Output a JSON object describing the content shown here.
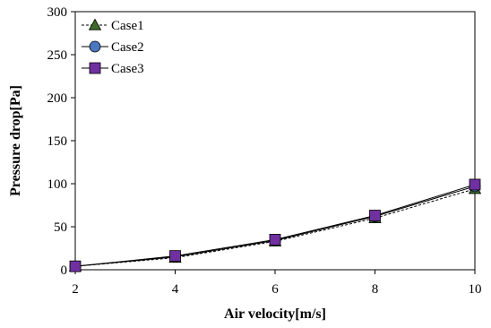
{
  "chart_data": {
    "type": "line",
    "xlabel": "Air velocity[m/s]",
    "ylabel": "Pressure drop[Pa]",
    "xlim": [
      2,
      10
    ],
    "ylim": [
      0,
      300
    ],
    "xticks": [
      "2",
      "4",
      "6",
      "8",
      "10"
    ],
    "yticks": [
      "0",
      "50",
      "100",
      "150",
      "200",
      "250",
      "300"
    ],
    "grid": false,
    "legend_position": "top-left",
    "x": [
      2,
      4,
      6,
      8,
      10
    ],
    "series": [
      {
        "name": "Case1",
        "marker": "triangle",
        "line": "dashed",
        "color": "#3f6b2a",
        "values": [
          4,
          14,
          33,
          60,
          94
        ]
      },
      {
        "name": "Case2",
        "marker": "circle",
        "line": "solid",
        "color": "#4a78c0",
        "values": [
          4,
          15,
          34,
          62,
          97
        ]
      },
      {
        "name": "Case3",
        "marker": "square",
        "line": "solid",
        "color": "#7030a0",
        "values": [
          4,
          16,
          35,
          63,
          99
        ]
      }
    ]
  }
}
